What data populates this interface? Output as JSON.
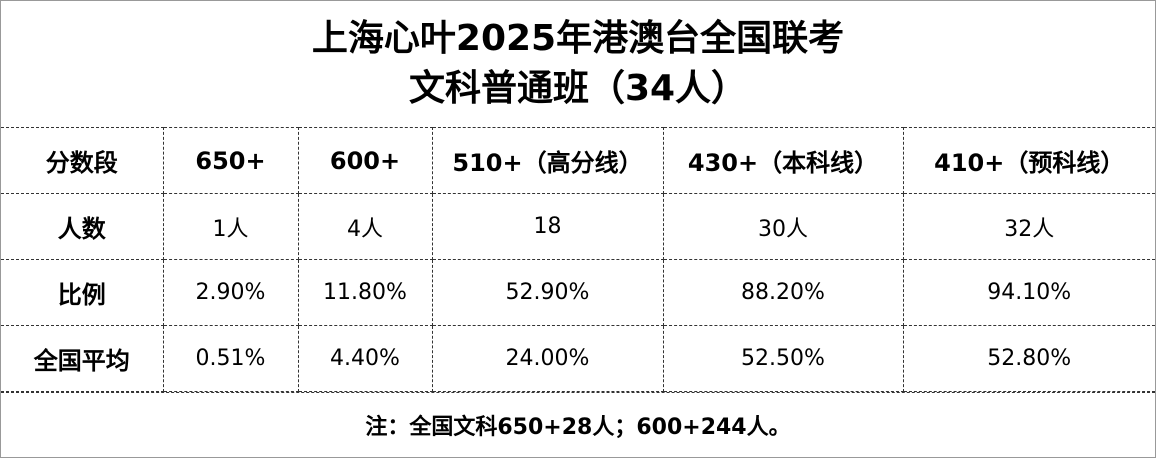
{
  "title": {
    "lines": [
      "上海心叶2025年港澳台全国联考",
      "文科普通班（34人）"
    ]
  },
  "table": {
    "header": [
      "分数段",
      "650+",
      "600+",
      "510+（高分线）",
      "430+（本科线）",
      "410+（预科线）"
    ],
    "rows": [
      [
        "人数",
        "1人",
        "4人",
        "18",
        "30人",
        "32人"
      ],
      [
        "比例",
        "2.90%",
        "11.80%",
        "52.90%",
        "88.20%",
        "94.10%"
      ],
      [
        "全国平均",
        "0.51%",
        "4.40%",
        "24.00%",
        "52.50%",
        "52.80%"
      ]
    ]
  },
  "note": "注：全国文科650+28人；600+244人。"
}
